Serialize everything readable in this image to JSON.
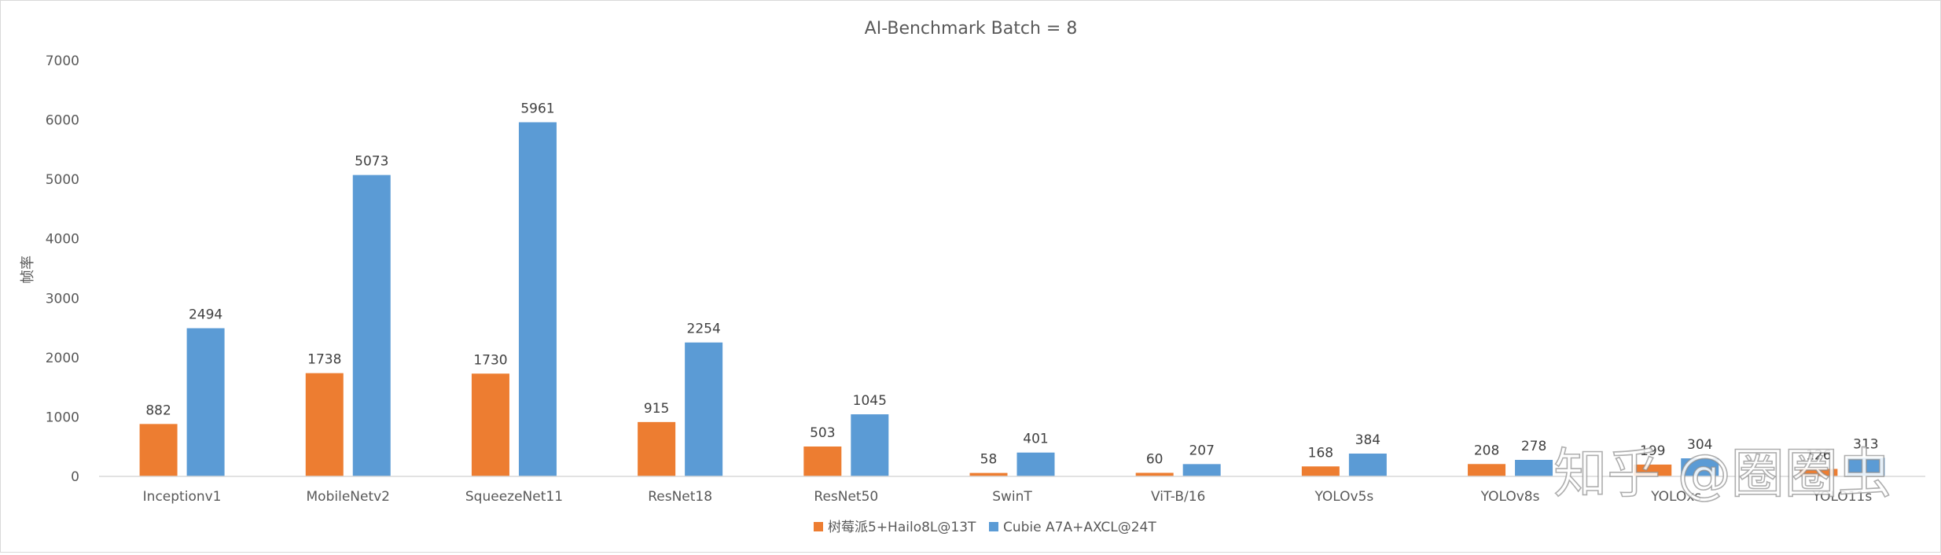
{
  "chart_data": {
    "type": "bar",
    "title": "AI-Benchmark Batch = 8",
    "xlabel": "",
    "ylabel": "帧率",
    "ylim": [
      0,
      7000
    ],
    "yticks": [
      0,
      1000,
      2000,
      3000,
      4000,
      5000,
      6000,
      7000
    ],
    "grid": false,
    "legend_position": "bottom",
    "categories": [
      "Inceptionv1",
      "MobileNetv2",
      "SqueezeNet11",
      "ResNet18",
      "ResNet50",
      "SwinT",
      "ViT-B/16",
      "YOLOv5s",
      "YOLOv8s",
      "YOLOxs",
      "YOLO11s"
    ],
    "series": [
      {
        "name": "树莓派5+Hailo8L@13T",
        "color": "#ed7d31",
        "values": [
          882,
          1738,
          1730,
          915,
          503,
          58,
          60,
          168,
          208,
          199,
          126
        ]
      },
      {
        "name": "Cubie A7A+AXCL@24T",
        "color": "#5b9bd5",
        "values": [
          2494,
          5073,
          5961,
          2254,
          1045,
          401,
          207,
          384,
          278,
          304,
          313
        ]
      }
    ]
  },
  "watermark": "知乎 @圈圈虫"
}
